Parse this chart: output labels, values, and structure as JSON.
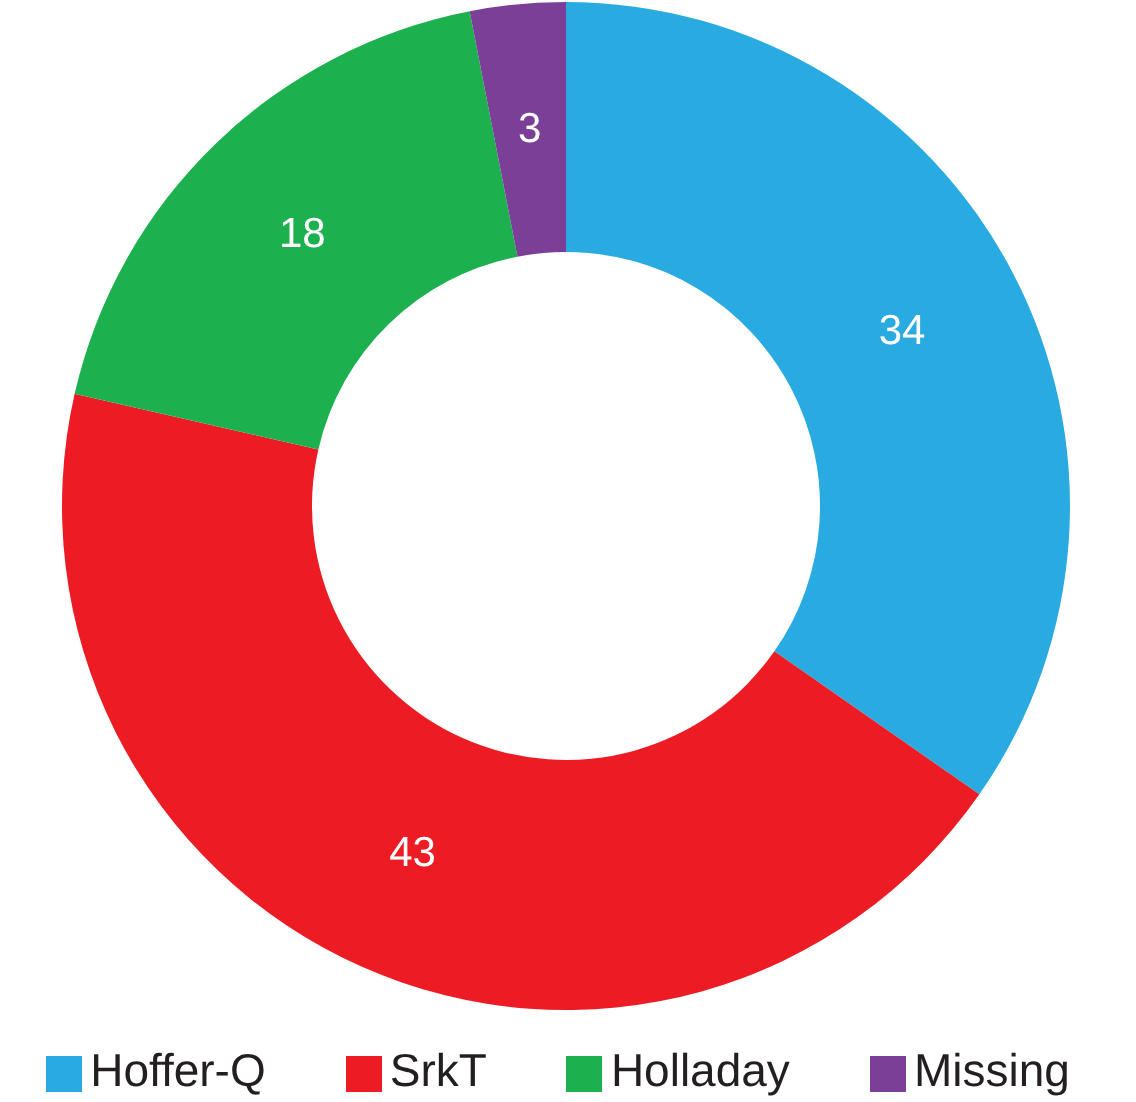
{
  "chart_data": {
    "type": "donut",
    "categories": [
      "Hoffer-Q",
      "SrkT",
      "Holladay",
      "Missing"
    ],
    "values": [
      34,
      43,
      18,
      3
    ],
    "colors": [
      "#29abe2",
      "#ed1c24",
      "#1db04f",
      "#7b3f98"
    ],
    "data_labels": true,
    "legend": "bottom"
  }
}
